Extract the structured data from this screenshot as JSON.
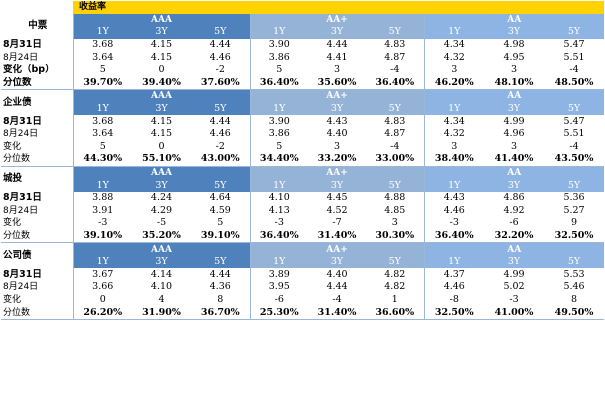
{
  "title": "收益率",
  "grades": [
    "AAA",
    "AA+",
    "AA"
  ],
  "tenors": [
    "1Y",
    "3Y",
    "5Y"
  ],
  "sections": [
    {
      "name": "中票",
      "rows": [
        {
          "label": "8月31日",
          "bold": true,
          "values": [
            "3.68",
            "4.15",
            "4.44",
            "3.90",
            "4.44",
            "4.83",
            "4.34",
            "4.98",
            "5.47"
          ]
        },
        {
          "label": "8月24日",
          "bold": false,
          "values": [
            "3.64",
            "4.15",
            "4.46",
            "3.86",
            "4.41",
            "4.87",
            "4.32",
            "4.95",
            "5.51"
          ]
        },
        {
          "label": "变化（bp）",
          "bold": true,
          "values": [
            "5",
            "0",
            "-2",
            "5",
            "3",
            "-4",
            "3",
            "3",
            "-4"
          ]
        },
        {
          "label": "分位数",
          "bold": true,
          "values": [
            "39.70%",
            "39.40%",
            "37.60%",
            "36.40%",
            "35.60%",
            "36.40%",
            "46.20%",
            "48.10%",
            "48.50%"
          ]
        }
      ]
    },
    {
      "name": "企业债",
      "rows": [
        {
          "label": "8月31日",
          "bold": true,
          "values": [
            "3.68",
            "4.15",
            "4.44",
            "3.90",
            "4.43",
            "4.83",
            "4.34",
            "4.99",
            "5.47"
          ]
        },
        {
          "label": "8月24日",
          "bold": false,
          "values": [
            "3.64",
            "4.15",
            "4.46",
            "3.86",
            "4.40",
            "4.87",
            "4.32",
            "4.96",
            "5.51"
          ]
        },
        {
          "label": "变化",
          "bold": false,
          "values": [
            "5",
            "0",
            "-2",
            "5",
            "3",
            "-4",
            "3",
            "3",
            "-4"
          ]
        },
        {
          "label": "分位数",
          "bold": false,
          "values": [
            "44.30%",
            "55.10%",
            "43.00%",
            "34.40%",
            "33.20%",
            "33.00%",
            "38.40%",
            "41.40%",
            "43.50%"
          ]
        }
      ]
    },
    {
      "name": "城投",
      "rows": [
        {
          "label": "8月31日",
          "bold": true,
          "values": [
            "3.88",
            "4.24",
            "4.64",
            "4.10",
            "4.45",
            "4.88",
            "4.43",
            "4.86",
            "5.36"
          ]
        },
        {
          "label": "8月24日",
          "bold": false,
          "values": [
            "3.91",
            "4.29",
            "4.59",
            "4.13",
            "4.52",
            "4.85",
            "4.46",
            "4.92",
            "5.27"
          ]
        },
        {
          "label": "变化",
          "bold": false,
          "values": [
            "-3",
            "-5",
            "5",
            "-3",
            "-7",
            "3",
            "-3",
            "-6",
            "9"
          ]
        },
        {
          "label": "分位数",
          "bold": false,
          "values": [
            "39.10%",
            "35.20%",
            "39.10%",
            "36.40%",
            "31.40%",
            "30.30%",
            "36.40%",
            "32.20%",
            "32.50%"
          ]
        }
      ]
    },
    {
      "name": "公司债",
      "rows": [
        {
          "label": "8月31日",
          "bold": true,
          "values": [
            "3.67",
            "4.14",
            "4.44",
            "3.89",
            "4.40",
            "4.82",
            "4.37",
            "4.99",
            "5.53"
          ]
        },
        {
          "label": "8月24日",
          "bold": false,
          "values": [
            "3.66",
            "4.10",
            "4.36",
            "3.95",
            "4.44",
            "4.82",
            "4.46",
            "5.02",
            "5.46"
          ]
        },
        {
          "label": "变化",
          "bold": false,
          "values": [
            "0",
            "4",
            "8",
            "-6",
            "-4",
            "1",
            "-8",
            "-3",
            "8"
          ]
        },
        {
          "label": "分位数",
          "bold": false,
          "values": [
            "26.20%",
            "31.90%",
            "36.70%",
            "25.30%",
            "31.40%",
            "36.60%",
            "32.50%",
            "41.00%",
            "49.50%"
          ]
        }
      ]
    }
  ]
}
